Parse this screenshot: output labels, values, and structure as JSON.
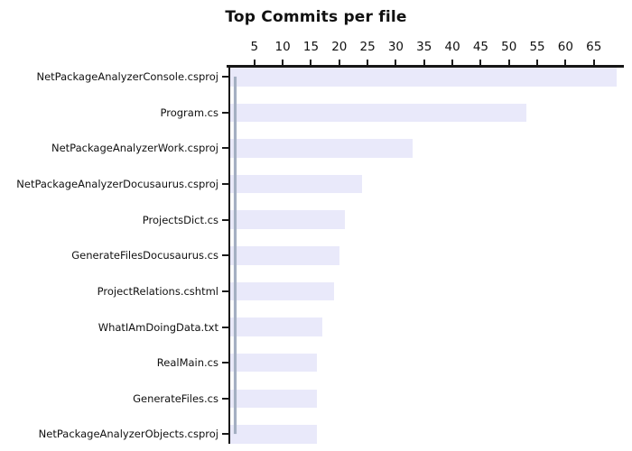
{
  "chart_data": {
    "type": "bar",
    "orientation": "horizontal",
    "title": "Top Commits per file",
    "categories": [
      "NetPackageAnalyzerConsole.csproj",
      "Program.cs",
      "NetPackageAnalyzerWork.csproj",
      "NetPackageAnalyzerDocusaurus.csproj",
      "ProjectsDict.cs",
      "GenerateFilesDocusaurus.cs",
      "ProjectRelations.cshtml",
      "WhatIAmDoingData.txt",
      "RealMain.cs",
      "GenerateFiles.cs",
      "NetPackageAnalyzerObjects.csproj"
    ],
    "values": [
      69,
      53,
      33,
      24,
      21,
      20,
      19,
      17,
      16,
      16,
      16
    ],
    "xlabel": "",
    "ylabel": "",
    "x_axis": {
      "position": "top",
      "ticks": [
        5,
        10,
        15,
        20,
        25,
        30,
        35,
        40,
        45,
        50,
        55,
        60,
        65
      ],
      "range": [
        0,
        70.3
      ]
    },
    "grid": false,
    "legend": false,
    "bar_color": "#e9e9fa",
    "axis_color": "#161616",
    "text_color": "#111111",
    "background_color": "#ffffff",
    "overlay_line": {
      "x_value": 1.6,
      "spans": "first category center to last category center",
      "color": "#a4afc2"
    }
  }
}
